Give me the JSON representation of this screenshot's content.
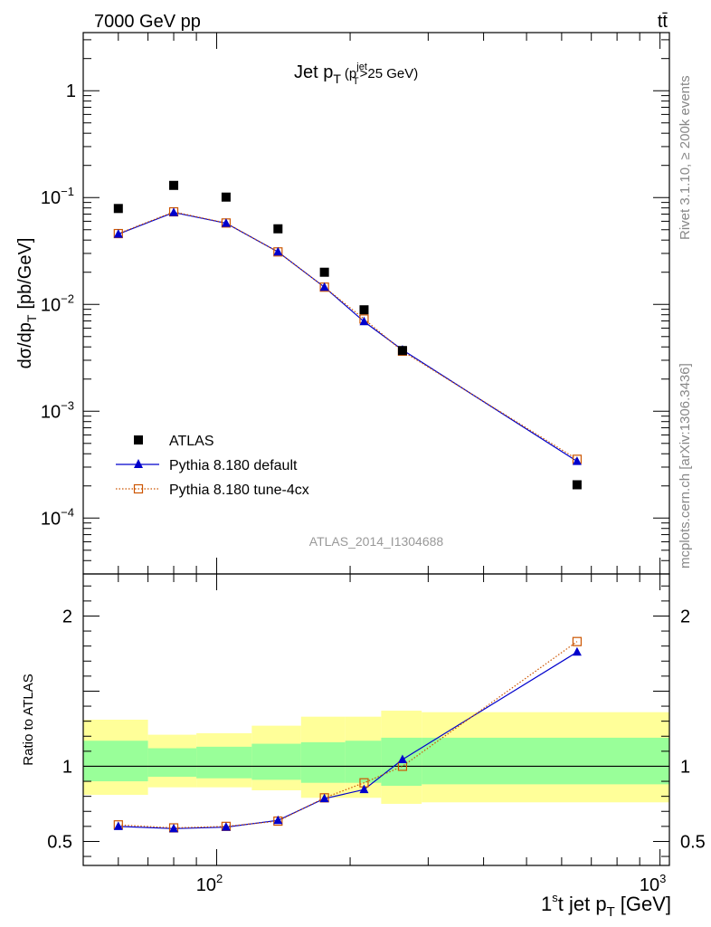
{
  "header": {
    "energy": "7000 GeV pp",
    "process": "tt̄"
  },
  "side_labels": {
    "rivet": "Rivet 3.1.10, ≥ 200k events",
    "mcplots": "mcplots.cern.ch [arXiv:1306.3436]"
  },
  "chart_data": [
    {
      "type": "scatter",
      "title": "Jet pT (pTjet>25 GeV)",
      "title_parts": {
        "main": "Jet p",
        "sub": "T",
        "cut_open": "(p",
        "cut_sup": "jet",
        "cut_sub": "T",
        "cut_close": ">25 GeV)"
      },
      "ylabel": "dσ/dpT [pb/GeV]",
      "ylabel_parts": {
        "main": "dσ/dp",
        "sub": "T",
        "unit": "[pb/GeV]"
      },
      "yscale": "log",
      "xscale": "log",
      "xlim": [
        50,
        1050
      ],
      "ylim": [
        3e-05,
        3.5
      ],
      "y_ticks": [
        {
          "value": 1,
          "base": "1",
          "exp": ""
        },
        {
          "value": 0.1,
          "base": "10",
          "exp": "−1"
        },
        {
          "value": 0.01,
          "base": "10",
          "exp": "−2"
        },
        {
          "value": 0.001,
          "base": "10",
          "exp": "−3"
        },
        {
          "value": 0.0001,
          "base": "10",
          "exp": "−4"
        }
      ],
      "watermark": "ATLAS_2014_I1304688",
      "legend_position": "bottom-left",
      "x": [
        60,
        80,
        105,
        137.5,
        175,
        215,
        262.5,
        650
      ],
      "series": [
        {
          "name": "ATLAS",
          "marker": "square-filled",
          "color": "#000000",
          "values": [
            0.079,
            0.13,
            0.101,
            0.051,
            0.02,
            0.0089,
            0.0037,
            0.000205
          ]
        },
        {
          "name": "Pythia 8.180 default",
          "marker": "triangle-filled",
          "line": "solid",
          "color": "#0000cc",
          "values": [
            0.0455,
            0.0725,
            0.0575,
            0.031,
            0.0145,
            0.0069,
            0.00375,
            0.00034
          ]
        },
        {
          "name": "Pythia 8.180 tune-4cx",
          "marker": "square-open",
          "line": "dotted",
          "color": "#cc5500",
          "values": [
            0.046,
            0.0735,
            0.0578,
            0.031,
            0.0145,
            0.0073,
            0.00365,
            0.000355
          ]
        }
      ]
    },
    {
      "type": "line",
      "ylabel": "Ratio to ATLAS",
      "xlabel": "1st jet pT [GeV]",
      "xlabel_parts": {
        "main": "1",
        "sup": "s",
        "mid": "t jet p",
        "sub": "T",
        "unit": "[GeV]"
      },
      "xscale": "log",
      "xlim": [
        50,
        1050
      ],
      "ylim": [
        0.34,
        2.28
      ],
      "y_ticks": [
        0.5,
        1,
        2
      ],
      "x_ticks": [
        {
          "value": 100,
          "base": "10",
          "exp": "2"
        },
        {
          "value": 1000,
          "base": "10",
          "exp": "3"
        }
      ],
      "reference": 1,
      "bands": {
        "bin_edges": [
          50,
          70,
          90,
          120,
          155,
          195,
          235,
          290,
          1050
        ],
        "outer": {
          "color": "#ffff99",
          "low": [
            0.81,
            0.86,
            0.86,
            0.84,
            0.79,
            0.79,
            0.75,
            0.76
          ],
          "high": [
            1.31,
            1.21,
            1.22,
            1.27,
            1.33,
            1.33,
            1.37,
            1.36
          ]
        },
        "inner": {
          "color": "#99ff99",
          "low": [
            0.9,
            0.93,
            0.92,
            0.91,
            0.89,
            0.89,
            0.87,
            0.88
          ],
          "high": [
            1.17,
            1.12,
            1.13,
            1.15,
            1.16,
            1.17,
            1.19,
            1.19
          ]
        }
      },
      "x": [
        60,
        80,
        105,
        137.5,
        175,
        215,
        262.5,
        650
      ],
      "series": [
        {
          "name": "Pythia 8.180 default",
          "marker": "triangle-filled",
          "line": "solid",
          "color": "#0000cc",
          "values": [
            0.6,
            0.585,
            0.595,
            0.64,
            0.785,
            0.845,
            1.045,
            1.76
          ]
        },
        {
          "name": "Pythia 8.180 tune-4cx",
          "marker": "square-open",
          "line": "dotted",
          "color": "#cc5500",
          "values": [
            0.61,
            0.59,
            0.6,
            0.635,
            0.79,
            0.89,
            1.0,
            1.83
          ]
        }
      ]
    }
  ]
}
